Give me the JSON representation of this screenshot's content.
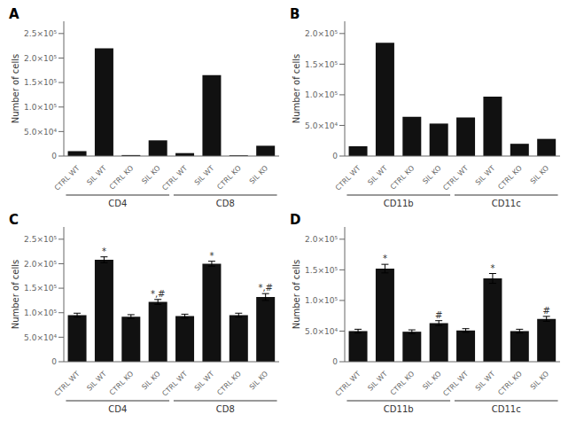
{
  "chart_data": [
    {
      "type": "bar",
      "title": "A",
      "ylabel": "Number of cells",
      "categories": [
        "CTRL WT",
        "SIL WT",
        "CTRL KO",
        "SIL KO",
        "CTRL WT",
        "SIL WT",
        "CTRL KO",
        "SIL KO"
      ],
      "groups": [
        "CD4",
        "CD4",
        "CD4",
        "CD4",
        "CD8",
        "CD8",
        "CD8",
        "CD8"
      ],
      "values": [
        10000,
        220000,
        2000,
        32000,
        6000,
        165000,
        1500,
        21000
      ],
      "color": "#111111",
      "ylim": [
        0,
        275000
      ],
      "yticks": [
        0,
        {
          "value": 50000,
          "label": "5.0×10⁴"
        },
        {
          "value": 100000,
          "label": "1.0×10⁵"
        },
        {
          "value": 150000,
          "label": "1.5×10⁵"
        },
        {
          "value": 200000,
          "label": "2.0×10⁵"
        },
        {
          "value": 250000,
          "label": "2.5×10⁵"
        }
      ]
    },
    {
      "type": "bar",
      "title": "B",
      "ylabel": "Number of cells",
      "categories": [
        "CTRL WT",
        "SIL WT",
        "CTRL KO",
        "SIL KO",
        "CTRL WT",
        "SIL WT",
        "CTRL KO",
        "SIL KO"
      ],
      "groups": [
        "CD11b",
        "CD11b",
        "CD11b",
        "CD11b",
        "CD11c",
        "CD11c",
        "CD11c",
        "CD11c"
      ],
      "values": [
        16000,
        185000,
        64000,
        53000,
        63000,
        97000,
        20000,
        28000
      ],
      "color": "#111111",
      "ylim": [
        0,
        220000
      ],
      "yticks": [
        0,
        {
          "value": 50000,
          "label": "5.0×10⁴"
        },
        {
          "value": 100000,
          "label": "1.0×10⁵"
        },
        {
          "value": 150000,
          "label": "1.5×10⁵"
        },
        {
          "value": 200000,
          "label": "2.0×10⁵"
        }
      ]
    },
    {
      "type": "bar",
      "title": "C",
      "ylabel": "Number of cells",
      "categories": [
        "CTRL WT",
        "SIL WT",
        "CTRL KO",
        "SIL KO",
        "CTRL WT",
        "SIL WT",
        "CTRL KO",
        "SIL KO"
      ],
      "groups": [
        "CD4",
        "CD4",
        "CD4",
        "CD4",
        "CD8",
        "CD8",
        "CD8",
        "CD8"
      ],
      "values": [
        95000,
        208000,
        92000,
        122000,
        93000,
        200000,
        95000,
        132000
      ],
      "errors": [
        4000,
        6000,
        4000,
        5000,
        4000,
        5000,
        4000,
        7000
      ],
      "annotations": [
        null,
        "*",
        null,
        "*,#",
        null,
        "*",
        null,
        "*,#"
      ],
      "color": "#111111",
      "ylim": [
        0,
        275000
      ],
      "yticks": [
        0,
        {
          "value": 50000,
          "label": "5.0×10⁴"
        },
        {
          "value": 100000,
          "label": "1.0×10⁵"
        },
        {
          "value": 150000,
          "label": "1.5×10⁵"
        },
        {
          "value": 200000,
          "label": "2.0×10⁵"
        },
        {
          "value": 250000,
          "label": "2.5×10⁵"
        }
      ]
    },
    {
      "type": "bar",
      "title": "D",
      "ylabel": "Number of cells",
      "categories": [
        "CTRL WT",
        "SIL WT",
        "CTRL KO",
        "SIL KO",
        "CTRL WT",
        "SIL WT",
        "CTRL KO",
        "SIL KO"
      ],
      "groups": [
        "CD11b",
        "CD11b",
        "CD11b",
        "CD11b",
        "CD11c",
        "CD11c",
        "CD11c",
        "CD11c"
      ],
      "values": [
        50000,
        152000,
        49000,
        63000,
        51000,
        136000,
        50000,
        70000
      ],
      "errors": [
        3000,
        7000,
        3000,
        4000,
        3000,
        8000,
        3000,
        4000
      ],
      "annotations": [
        null,
        "*",
        null,
        "#",
        null,
        "*",
        null,
        "#"
      ],
      "color": "#111111",
      "ylim": [
        0,
        220000
      ],
      "yticks": [
        0,
        {
          "value": 50000,
          "label": "5.0×10⁴"
        },
        {
          "value": 100000,
          "label": "1.0×10⁵"
        },
        {
          "value": 150000,
          "label": "1.5×10⁵"
        },
        {
          "value": 200000,
          "label": "2.0×10⁵"
        }
      ]
    }
  ]
}
